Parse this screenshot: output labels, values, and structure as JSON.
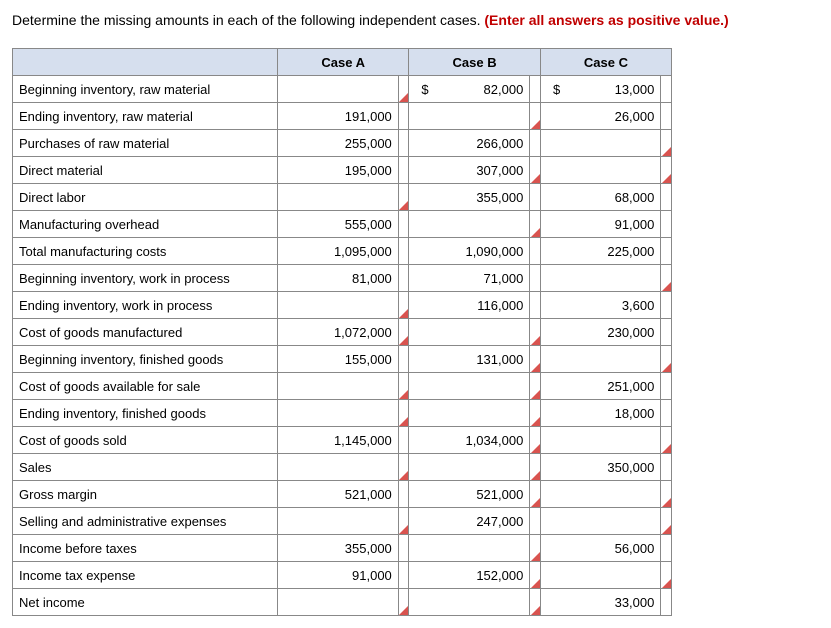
{
  "prompt": {
    "black": "Determine the missing amounts in each of the following independent cases. ",
    "red": "(Enter all answers as positive value.)"
  },
  "columns": [
    "Case A",
    "Case B",
    "Case C"
  ],
  "currency": "$",
  "rows": [
    {
      "label": "Beginning inventory, raw material",
      "a": {
        "v": "",
        "f": true
      },
      "b": {
        "v": "82,000",
        "c": true,
        "f": false
      },
      "c": {
        "v": "13,000",
        "c": true,
        "f": false
      }
    },
    {
      "label": "Ending inventory, raw material",
      "a": {
        "v": "191,000",
        "f": false
      },
      "b": {
        "v": "",
        "f": true
      },
      "c": {
        "v": "26,000",
        "f": false
      }
    },
    {
      "label": "Purchases of raw material",
      "a": {
        "v": "255,000",
        "f": false
      },
      "b": {
        "v": "266,000",
        "f": false
      },
      "c": {
        "v": "",
        "f": true
      }
    },
    {
      "label": "Direct material",
      "a": {
        "v": "195,000",
        "f": false
      },
      "b": {
        "v": "307,000",
        "f": true
      },
      "c": {
        "v": "",
        "f": true
      }
    },
    {
      "label": "Direct labor",
      "a": {
        "v": "",
        "f": true
      },
      "b": {
        "v": "355,000",
        "f": false
      },
      "c": {
        "v": "68,000",
        "f": false
      }
    },
    {
      "label": "Manufacturing overhead",
      "a": {
        "v": "555,000",
        "f": false
      },
      "b": {
        "v": "",
        "f": true
      },
      "c": {
        "v": "91,000",
        "f": false
      }
    },
    {
      "label": "Total manufacturing costs",
      "a": {
        "v": "1,095,000",
        "f": false
      },
      "b": {
        "v": "1,090,000",
        "f": false
      },
      "c": {
        "v": "225,000",
        "f": false
      }
    },
    {
      "label": "Beginning inventory, work in process",
      "a": {
        "v": "81,000",
        "f": false
      },
      "b": {
        "v": "71,000",
        "f": false
      },
      "c": {
        "v": "",
        "f": true
      }
    },
    {
      "label": "Ending inventory, work in process",
      "a": {
        "v": "",
        "f": true
      },
      "b": {
        "v": "116,000",
        "f": false
      },
      "c": {
        "v": "3,600",
        "f": false
      }
    },
    {
      "label": "Cost of goods manufactured",
      "a": {
        "v": "1,072,000",
        "f": true
      },
      "b": {
        "v": "",
        "f": true
      },
      "c": {
        "v": "230,000",
        "f": false
      }
    },
    {
      "label": "Beginning inventory, finished goods",
      "a": {
        "v": "155,000",
        "f": false
      },
      "b": {
        "v": "131,000",
        "f": true
      },
      "c": {
        "v": "",
        "f": true
      }
    },
    {
      "label": "Cost of goods available for sale",
      "a": {
        "v": "",
        "f": true
      },
      "b": {
        "v": "",
        "f": true
      },
      "c": {
        "v": "251,000",
        "f": false
      }
    },
    {
      "label": "Ending inventory, finished goods",
      "a": {
        "v": "",
        "f": true
      },
      "b": {
        "v": "",
        "f": true
      },
      "c": {
        "v": "18,000",
        "f": false
      }
    },
    {
      "label": "Cost of goods sold",
      "a": {
        "v": "1,145,000",
        "f": false
      },
      "b": {
        "v": "1,034,000",
        "f": true
      },
      "c": {
        "v": "",
        "f": true
      }
    },
    {
      "label": "Sales",
      "a": {
        "v": "",
        "f": true
      },
      "b": {
        "v": "",
        "f": true
      },
      "c": {
        "v": "350,000",
        "f": false
      }
    },
    {
      "label": "Gross margin",
      "a": {
        "v": "521,000",
        "f": false
      },
      "b": {
        "v": "521,000",
        "f": true
      },
      "c": {
        "v": "",
        "f": true
      }
    },
    {
      "label": "Selling and administrative expenses",
      "a": {
        "v": "",
        "f": true
      },
      "b": {
        "v": "247,000",
        "f": false
      },
      "c": {
        "v": "",
        "f": true
      }
    },
    {
      "label": "Income before taxes",
      "a": {
        "v": "355,000",
        "f": false
      },
      "b": {
        "v": "",
        "f": true
      },
      "c": {
        "v": "56,000",
        "f": false
      }
    },
    {
      "label": "Income tax expense",
      "a": {
        "v": "91,000",
        "f": false
      },
      "b": {
        "v": "152,000",
        "f": true
      },
      "c": {
        "v": "",
        "f": true
      }
    },
    {
      "label": "Net income",
      "a": {
        "v": "",
        "f": true
      },
      "b": {
        "v": "",
        "f": true
      },
      "c": {
        "v": "33,000",
        "f": false
      }
    }
  ],
  "style": {
    "header_bg": "#d6dfee",
    "border": "#888888",
    "flag_color": "#d9534f",
    "font_size": 13
  }
}
